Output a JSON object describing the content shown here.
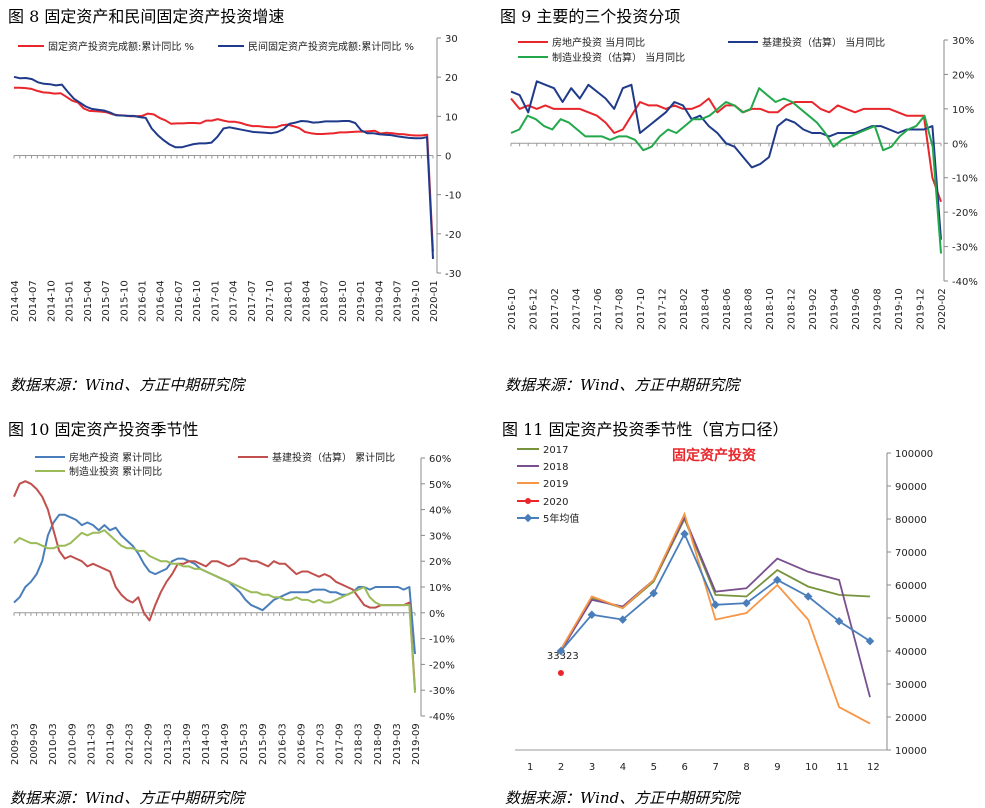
{
  "figures": [
    {
      "title": "图 8   固定资产和民间固定资产投资增速",
      "source": "数据来源：Wind、方正中期研究院"
    },
    {
      "title": "图 9   主要的三个投资分项",
      "source": "数据来源：Wind、方正中期研究院"
    },
    {
      "title": "图 10   固定资产投资季节性",
      "source": "数据来源：Wind、方正中期研究院"
    },
    {
      "title": "图 11   固定资产投资季节性（官方口径）",
      "source": "数据来源：Wind、方正中期研究院"
    }
  ],
  "chart_data": [
    {
      "type": "line",
      "title": "图 8 固定资产和民间固定资产投资增速",
      "y_ticks": [
        "30",
        "20",
        "10",
        "0",
        "-10",
        "-20",
        "-30"
      ],
      "ylim": [
        -30,
        30
      ],
      "x_ticks": [
        "2014-04",
        "2014-07",
        "2014-10",
        "2015-01",
        "2015-04",
        "2015-07",
        "2015-10",
        "2016-01",
        "2016-04",
        "2016-07",
        "2016-10",
        "2017-01",
        "2017-04",
        "2017-07",
        "2017-10",
        "2018-01",
        "2018-04",
        "2018-07",
        "2018-10",
        "2019-01",
        "2019-04",
        "2019-07",
        "2019-10",
        "2020-01"
      ],
      "series": [
        {
          "name": "固定资产投资完成额:累计同比 %",
          "color": "#e8262b",
          "values": [
            17.3,
            17.3,
            17.2,
            17.0,
            16.5,
            16.1,
            16.0,
            15.8,
            15.9,
            15.0,
            14.0,
            13.5,
            12.0,
            11.4,
            11.3,
            11.2,
            11.0,
            10.5,
            10.3,
            10.2,
            10.0,
            10.0,
            10.1,
            10.7,
            10.5,
            9.6,
            9.0,
            8.1,
            8.2,
            8.2,
            8.3,
            8.3,
            8.2,
            8.9,
            8.9,
            9.3,
            8.9,
            8.6,
            8.6,
            8.3,
            7.8,
            7.5,
            7.5,
            7.3,
            7.2,
            7.2,
            7.7,
            7.9,
            7.5,
            7.0,
            6.0,
            5.7,
            5.5,
            5.5,
            5.6,
            5.7,
            5.9,
            5.9,
            6.0,
            6.1,
            6.1,
            6.2,
            6.3,
            5.6,
            5.8,
            5.7,
            5.5,
            5.4,
            5.2,
            5.1,
            5.1,
            5.3,
            -24.5
          ]
        },
        {
          "name": "民间固定资产投资完成额:累计同比 %",
          "color": "#1f3a8a",
          "values": [
            20.1,
            19.7,
            19.8,
            19.5,
            18.7,
            18.3,
            18.2,
            17.9,
            18.1,
            16.2,
            14.5,
            13.5,
            12.5,
            11.9,
            11.7,
            11.5,
            11.0,
            10.3,
            10.2,
            10.1,
            10.1,
            9.8,
            9.6,
            6.9,
            5.2,
            3.9,
            2.8,
            2.1,
            2.1,
            2.5,
            2.9,
            3.1,
            3.1,
            3.3,
            4.8,
            6.9,
            7.2,
            6.9,
            6.6,
            6.3,
            6.0,
            5.9,
            5.8,
            5.7,
            6.0,
            6.7,
            8.1,
            8.4,
            8.8,
            8.7,
            8.4,
            8.5,
            8.7,
            8.7,
            8.7,
            8.8,
            8.8,
            8.3,
            6.4,
            5.7,
            5.7,
            5.4,
            5.3,
            5.2,
            4.9,
            4.7,
            4.5,
            4.4,
            4.4,
            4.7,
            -26.4
          ]
        }
      ]
    },
    {
      "type": "line",
      "title": "图 9 主要的三个投资分项",
      "y_ticks": [
        "30%",
        "20%",
        "10%",
        "0%",
        "-10%",
        "-20%",
        "-30%",
        "-40%"
      ],
      "ylim": [
        -40,
        30
      ],
      "x_ticks": [
        "2016-10",
        "2016-12",
        "2017-02",
        "2017-04",
        "2017-06",
        "2017-08",
        "2017-10",
        "2017-12",
        "2018-02",
        "2018-04",
        "2018-06",
        "2018-08",
        "2018-10",
        "2018-12",
        "2019-02",
        "2019-04",
        "2019-06",
        "2019-08",
        "2019-10",
        "2019-12",
        "2020-02"
      ],
      "series": [
        {
          "name": "房地产投资 当月同比",
          "color": "#e8262b",
          "values": [
            13,
            10,
            11,
            10,
            11,
            10,
            10,
            10,
            10,
            9,
            8,
            6,
            3,
            4,
            8,
            12,
            11,
            11,
            10,
            11,
            10,
            10,
            11,
            13,
            9,
            11,
            11,
            9,
            10,
            10,
            9,
            9,
            11,
            12,
            12,
            12,
            10,
            9,
            11,
            10,
            9,
            10,
            10,
            10,
            10,
            9,
            8,
            8,
            8,
            -10,
            -17
          ]
        },
        {
          "name": "基建投资（估算） 当月同比",
          "color": "#1f3a8a",
          "values": [
            15,
            14,
            9,
            18,
            17,
            16,
            12,
            16,
            13,
            17,
            15,
            13,
            10,
            16,
            17,
            3,
            5,
            7,
            9,
            12,
            11,
            7,
            8,
            5,
            3,
            0,
            -1,
            -4,
            -7,
            -6,
            -4,
            5,
            7,
            6,
            4,
            3,
            3,
            2,
            3,
            3,
            3,
            4,
            5,
            5,
            4,
            3,
            4,
            4,
            4,
            5,
            -28
          ]
        },
        {
          "name": "制造业投资（估算） 当月同比",
          "color": "#22a84a",
          "values": [
            3,
            4,
            8,
            7,
            5,
            4,
            7,
            6,
            4,
            2,
            2,
            2,
            1,
            2,
            2,
            1,
            -2,
            -1,
            2,
            4,
            3,
            5,
            7,
            7,
            8,
            10,
            12,
            11,
            9,
            10,
            16,
            14,
            12,
            13,
            12,
            10,
            8,
            6,
            3,
            -1,
            1,
            2,
            3,
            4,
            5,
            -2,
            -1,
            2,
            4,
            5,
            8,
            -1,
            -32
          ]
        }
      ]
    },
    {
      "type": "line",
      "title": "图 10 固定资产投资季节性",
      "y_ticks": [
        "60%",
        "50%",
        "40%",
        "30%",
        "20%",
        "10%",
        "0%",
        "-10%",
        "-20%",
        "-30%",
        "-40%"
      ],
      "ylim": [
        -40,
        60
      ],
      "x_ticks": [
        "2009-03",
        "2009-09",
        "2010-03",
        "2010-09",
        "2011-03",
        "2011-09",
        "2012-03",
        "2012-09",
        "2013-03",
        "2013-09",
        "2014-03",
        "2014-09",
        "2015-03",
        "2015-09",
        "2016-03",
        "2016-09",
        "2017-03",
        "2017-09",
        "2018-03",
        "2018-09",
        "2019-03",
        "2019-09"
      ],
      "series": [
        {
          "name": "房地产投资 累计同比",
          "color": "#4a7ebb",
          "values": [
            4,
            6,
            10,
            12,
            15,
            20,
            30,
            35,
            38,
            38,
            37,
            36,
            34,
            35,
            34,
            32,
            34,
            32,
            33,
            30,
            28,
            26,
            23,
            19,
            16,
            15,
            16,
            17,
            20,
            21,
            21,
            20,
            19,
            17,
            16,
            15,
            14,
            13,
            12,
            10,
            8,
            5,
            3,
            2,
            1,
            3,
            5,
            6,
            7,
            8,
            8,
            8,
            8,
            9,
            9,
            9,
            8,
            8,
            7,
            7,
            8,
            10,
            10,
            9,
            10,
            10,
            10,
            10,
            10,
            9,
            10,
            -16
          ]
        },
        {
          "name": "基建投资（估算） 累计同比",
          "color": "#c0504d",
          "values": [
            45,
            50,
            51,
            50,
            48,
            45,
            40,
            32,
            24,
            21,
            22,
            21,
            20,
            18,
            19,
            18,
            17,
            16,
            10,
            7,
            5,
            4,
            6,
            0,
            -3,
            3,
            8,
            12,
            15,
            19,
            19,
            20,
            20,
            19,
            18,
            20,
            20,
            19,
            18,
            19,
            21,
            21,
            20,
            20,
            19,
            18,
            20,
            19,
            19,
            17,
            15,
            16,
            16,
            15,
            14,
            15,
            14,
            12,
            11,
            10,
            9,
            6,
            3,
            2,
            2,
            3,
            3,
            3,
            3,
            3,
            4,
            -30
          ]
        },
        {
          "name": "制造业投资 累计同比",
          "color": "#9bbb59",
          "values": [
            27,
            29,
            28,
            27,
            27,
            26,
            25,
            25,
            26,
            26,
            27,
            29,
            31,
            30,
            31,
            31,
            32,
            30,
            28,
            26,
            25,
            25,
            24,
            24,
            22,
            21,
            20,
            20,
            19,
            19,
            18,
            18,
            17,
            17,
            16,
            15,
            14,
            13,
            12,
            11,
            10,
            9,
            8,
            8,
            7,
            7,
            6,
            6,
            5,
            5,
            6,
            5,
            5,
            4,
            5,
            4,
            4,
            5,
            6,
            7,
            8,
            9,
            10,
            6,
            4,
            3,
            3,
            3,
            3,
            3,
            3,
            -31
          ]
        }
      ]
    },
    {
      "type": "line",
      "title": "固定资产投资",
      "y_ticks": [
        "100000",
        "90000",
        "80000",
        "70000",
        "60000",
        "50000",
        "40000",
        "30000",
        "20000",
        "10000"
      ],
      "ylim": [
        10000,
        100000
      ],
      "categories": [
        "1",
        "2",
        "3",
        "4",
        "5",
        "6",
        "7",
        "8",
        "9",
        "10",
        "11",
        "12"
      ],
      "series": [
        {
          "name": "2017",
          "color": "#77933c",
          "values": [
            null,
            40500,
            56000,
            53000,
            61000,
            80000,
            57000,
            56500,
            64500,
            59500,
            57000,
            56500
          ]
        },
        {
          "name": "2018",
          "color": "#7a4f8e",
          "values": [
            null,
            40000,
            55500,
            53500,
            61500,
            80500,
            58000,
            59000,
            68000,
            64000,
            61500,
            26000
          ]
        },
        {
          "name": "2019",
          "color": "#f79646",
          "values": [
            null,
            40500,
            56500,
            53000,
            61500,
            81500,
            49500,
            51500,
            60000,
            49500,
            23000,
            18000
          ]
        },
        {
          "name": "2020",
          "color": "#e8262b",
          "values": [
            null,
            33323,
            null,
            null,
            null,
            null,
            null,
            null,
            null,
            null,
            null,
            null
          ]
        },
        {
          "name": "5年均值",
          "color": "#4a7ebb",
          "values": [
            null,
            40000,
            51000,
            49500,
            57500,
            75500,
            54000,
            54500,
            61500,
            56500,
            49000,
            43000
          ]
        }
      ],
      "annotation": "33323"
    }
  ]
}
